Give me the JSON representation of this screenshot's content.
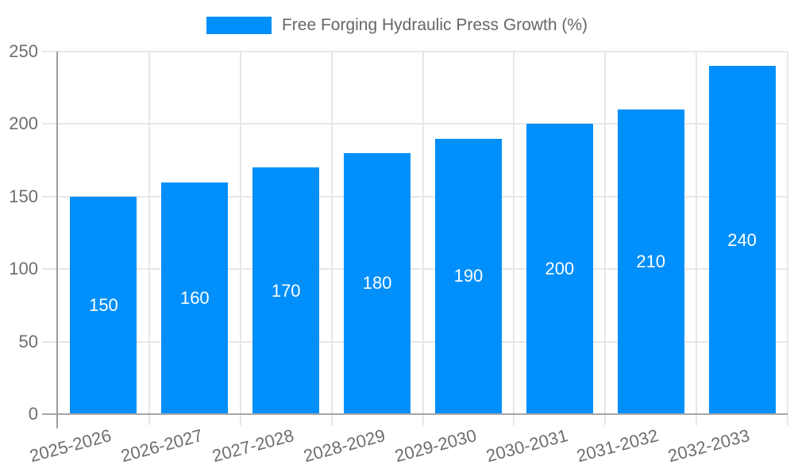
{
  "chart_data": {
    "type": "bar",
    "legend_label": "Free Forging Hydraulic Press Growth (%)",
    "legend_position": "top",
    "categories": [
      "2025-2026",
      "2026-2027",
      "2027-2028",
      "2028-2029",
      "2029-2030",
      "2030-2031",
      "2031-2032",
      "2032-2033"
    ],
    "values": [
      150,
      160,
      170,
      180,
      190,
      200,
      210,
      240
    ],
    "bar_labels": [
      "150",
      "160",
      "170",
      "180",
      "190",
      "200",
      "210",
      "240"
    ],
    "xlabel": "",
    "ylabel": "",
    "ylim": [
      0,
      250
    ],
    "yticks": [
      0,
      50,
      100,
      150,
      200,
      250
    ],
    "grid": true,
    "x_label_rotation_deg": -15,
    "colors": {
      "bar": "#008FFB",
      "bar_value_text": "#FFFFFF",
      "grid_line": "#E7E7E7",
      "axis_line": "#A6A6A6",
      "y_axis_line": "#9E9E9E",
      "tick_text": "#6E6E6E",
      "legend_text": "#666666"
    }
  }
}
